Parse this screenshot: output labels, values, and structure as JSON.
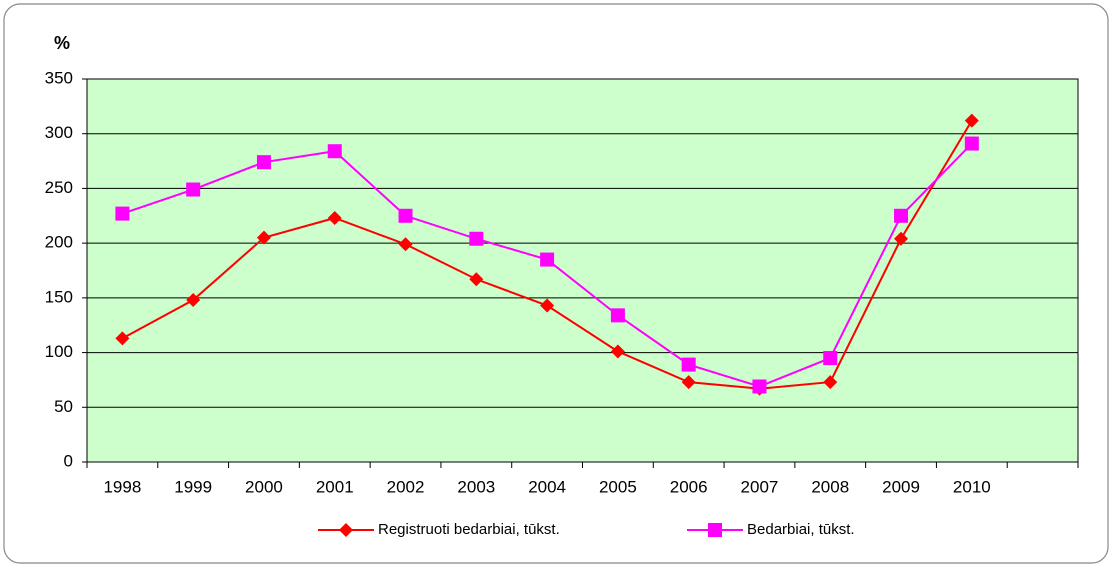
{
  "chart_data": {
    "type": "line",
    "y_label": "%",
    "categories": [
      "1998",
      "1999",
      "2000",
      "2001",
      "2002",
      "2003",
      "2004",
      "2005",
      "2006",
      "2007",
      "2008",
      "2009",
      "2010",
      null
    ],
    "series": [
      {
        "name": "Registruoti bedarbiai, tūkst.",
        "color": "#ff0000",
        "marker": "diamond",
        "values": [
          113,
          148,
          205,
          223,
          199,
          167,
          143,
          101,
          73,
          67,
          73,
          204,
          312,
          null
        ]
      },
      {
        "name": "Bedarbiai, tūkst.",
        "color": "#ff00ff",
        "marker": "square",
        "values": [
          227,
          249,
          274,
          284,
          225,
          204,
          185,
          134,
          89,
          69,
          95,
          225,
          291,
          null
        ]
      }
    ],
    "ylim": [
      0,
      350
    ],
    "yticks": [
      0,
      50,
      100,
      150,
      200,
      250,
      300,
      350
    ],
    "grid": true,
    "legend": "bottom"
  }
}
